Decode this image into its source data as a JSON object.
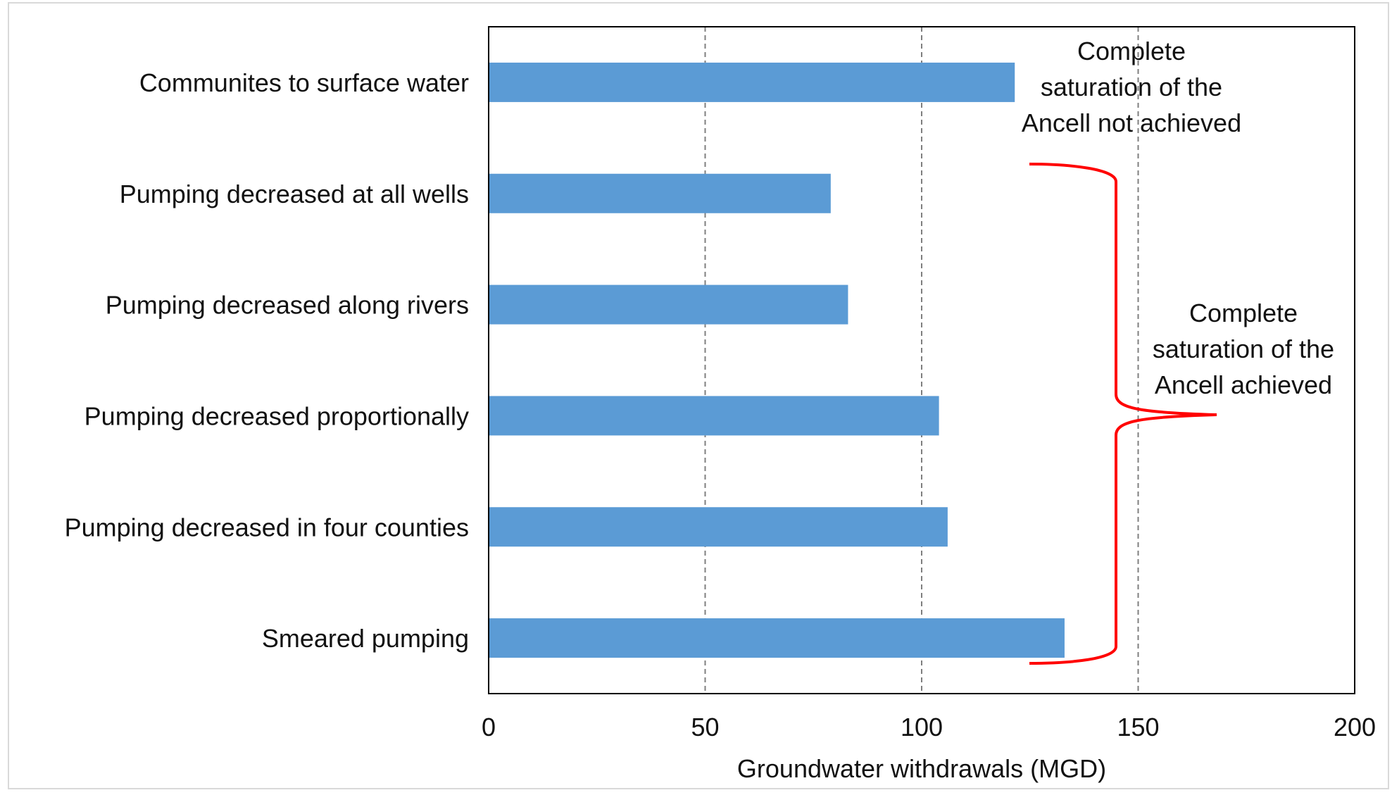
{
  "chart_data": {
    "type": "bar",
    "orientation": "horizontal",
    "categories": [
      "Communites to surface water",
      "Pumping decreased at all wells",
      "Pumping decreased along rivers",
      "Pumping decreased proportionally",
      "Pumping decreased in four counties",
      "Smeared pumping"
    ],
    "values": [
      121.5,
      79,
      83,
      104,
      106,
      133
    ],
    "xlabel": "Groundwater withdrawals (MGD)",
    "ylabel": "",
    "xlim": [
      0,
      200
    ],
    "x_ticks": [
      0,
      50,
      100,
      150,
      200
    ],
    "grid": "vertical dashed at 50, 100, 150",
    "bar_color": "#5b9bd5",
    "annotations": [
      {
        "lines": [
          "Complete",
          "saturation of the",
          "Ancell not achieved"
        ]
      },
      {
        "lines": [
          "Complete",
          "saturation of the",
          "Ancell achieved"
        ]
      }
    ],
    "brace_color": "#ff0000"
  }
}
